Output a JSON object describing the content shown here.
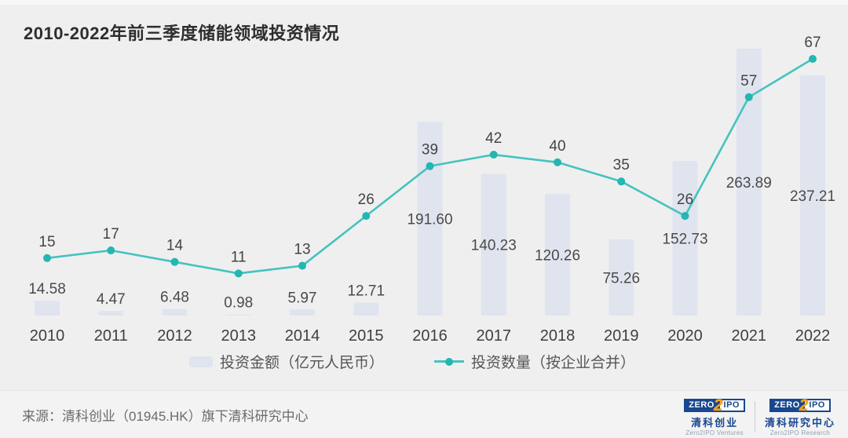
{
  "chart_data": {
    "type": "combo-bar-line",
    "title": "2010-2022年前三季度储能领域投资情况",
    "categories": [
      "2010",
      "2011",
      "2012",
      "2013",
      "2014",
      "2015",
      "2016",
      "2017",
      "2018",
      "2019",
      "2020",
      "2021",
      "2022"
    ],
    "series": [
      {
        "name": "投资金额（亿元人民币）",
        "type": "bar",
        "values": [
          14.58,
          4.47,
          6.48,
          0.98,
          5.97,
          12.71,
          191.6,
          140.23,
          120.26,
          75.26,
          152.73,
          263.89,
          237.21
        ],
        "labels": [
          "14.58",
          "4.47",
          "6.48",
          "0.98",
          "5.97",
          "12.71",
          "191.60",
          "140.23",
          "120.26",
          "75.26",
          "152.73",
          "263.89",
          "237.21"
        ]
      },
      {
        "name": "投资数量（按企业合并）",
        "type": "line",
        "values": [
          15,
          17,
          14,
          11,
          13,
          26,
          39,
          42,
          40,
          35,
          26,
          57,
          67
        ],
        "labels": [
          "15",
          "17",
          "14",
          "11",
          "13",
          "26",
          "39",
          "42",
          "40",
          "35",
          "26",
          "57",
          "67"
        ]
      }
    ],
    "value_labels": true,
    "gridlines": false,
    "axes": "x-category-only",
    "legend_position": "bottom",
    "ylim_bar": [
      0,
      280
    ],
    "ylim_line": [
      0,
      70
    ]
  },
  "colors": {
    "background": "#efeff0",
    "bar": "#dfe4ee",
    "line": "#45c3bd",
    "marker": "#23b6b2",
    "title_text": "#2d2d2d",
    "label_text": "#4a4a4a",
    "logo_blue": "#18478f",
    "logo_orange": "#f7a21b"
  },
  "footer": {
    "source": "来源：清科创业（01945.HK）旗下清科研究中心",
    "logos": [
      {
        "zero": "ZERO",
        "two": "2",
        "ipo": "IPO",
        "cn": "清科创业",
        "en": "Zero2IPO Ventures"
      },
      {
        "zero": "ZERO",
        "two": "2",
        "ipo": "IPO",
        "cn": "清科研究中心",
        "en": "Zero2IPO Research"
      }
    ]
  }
}
